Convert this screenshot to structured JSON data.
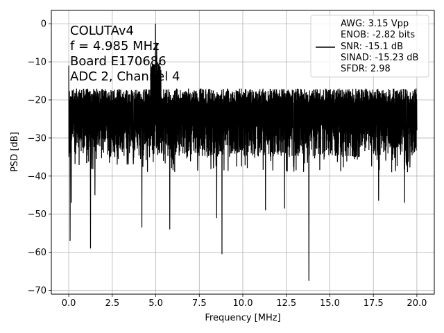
{
  "chart_data": {
    "type": "line",
    "xlabel": "Frequency [MHz]",
    "ylabel": "PSD [dB]",
    "xlim": [
      -1.0,
      21.0
    ],
    "ylim": [
      -71.0,
      3.5
    ],
    "x_ticks": [
      0.0,
      2.5,
      5.0,
      7.5,
      10.0,
      12.5,
      15.0,
      17.5,
      20.0
    ],
    "x_tick_labels": [
      "0.0",
      "2.5",
      "5.0",
      "7.5",
      "10.0",
      "12.5",
      "15.0",
      "17.5",
      "20.0"
    ],
    "y_ticks": [
      0,
      -10,
      -20,
      -30,
      -40,
      -50,
      -60,
      -70
    ],
    "y_tick_labels": [
      "0",
      "−10",
      "−20",
      "−30",
      "−40",
      "−50",
      "−60",
      "−70"
    ],
    "grid": true,
    "series_color": "#000000",
    "annotation_lines": [
      "COLUTAv4",
      "f = 4.985 MHz",
      "Board E170686",
      "ADC 2, Channel 4"
    ],
    "legend": {
      "placement": "upper right",
      "lines": [
        "AWG: 3.15 Vpp",
        "ENOB: -2.82 bits",
        "SNR: -15.1 dB",
        "SINAD: -15.23 dB",
        "SFDR: 2.98"
      ]
    },
    "noise_floor_mean_db": -24,
    "noise_floor_upper_db": -17,
    "noise_floor_lower_typical_db": -35,
    "peaks": [
      {
        "x": 0.0,
        "y": -11
      },
      {
        "x": 4.985,
        "y": 0
      },
      {
        "x": 5.05,
        "y": -5
      }
    ],
    "dips": [
      {
        "x": 0.08,
        "y": -57
      },
      {
        "x": 0.15,
        "y": -47
      },
      {
        "x": 1.25,
        "y": -59
      },
      {
        "x": 1.5,
        "y": -45
      },
      {
        "x": 4.2,
        "y": -53.5
      },
      {
        "x": 5.8,
        "y": -54
      },
      {
        "x": 8.8,
        "y": -60.5
      },
      {
        "x": 8.5,
        "y": -51
      },
      {
        "x": 11.3,
        "y": -49
      },
      {
        "x": 12.4,
        "y": -48.5
      },
      {
        "x": 13.8,
        "y": -67.5
      },
      {
        "x": 17.8,
        "y": -46.5
      },
      {
        "x": 19.3,
        "y": -47
      }
    ]
  }
}
